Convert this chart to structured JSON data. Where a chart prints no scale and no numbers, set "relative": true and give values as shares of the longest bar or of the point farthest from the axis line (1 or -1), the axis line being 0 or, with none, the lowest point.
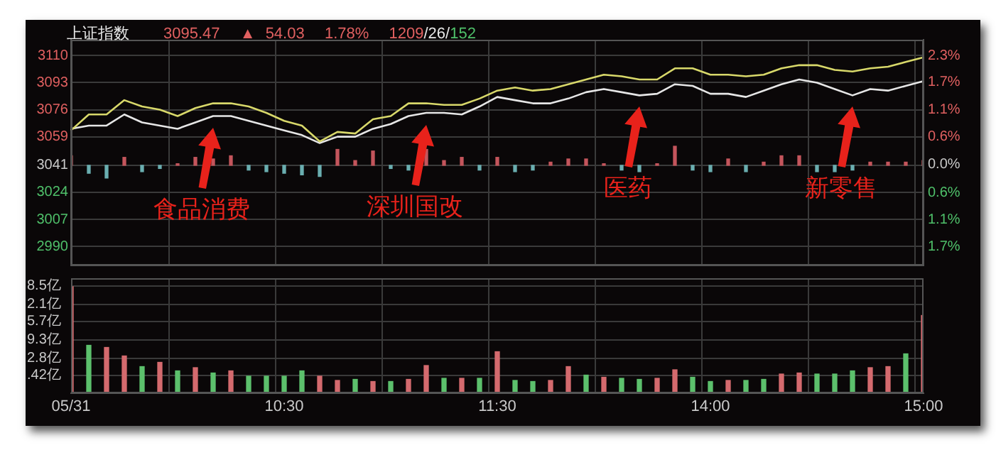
{
  "chart_data": [
    {
      "type": "line",
      "title": "上证指数",
      "subtitle": "3095.47  ▲ 54.03  1.78%  1209/26/152",
      "annotations": [
        "食品消费",
        "深圳国改",
        "医药",
        "新零售"
      ],
      "categories": [
        null,
        null,
        null,
        null,
        null,
        null,
        null,
        null,
        null,
        null,
        null,
        null,
        null,
        null,
        null,
        null,
        null,
        null,
        null,
        null,
        null,
        null,
        null,
        null,
        null,
        null,
        null,
        null,
        null,
        null,
        null,
        null,
        null,
        null,
        null,
        null,
        null,
        null,
        null,
        null,
        null,
        null,
        null,
        null,
        null,
        null,
        null,
        null,
        null
      ],
      "series": [
        {
          "type": "line",
          "color": "#d8d86a",
          "values": [
            3063,
            3073,
            3073,
            3082,
            3078,
            3076,
            3072,
            3077,
            3080,
            3080,
            3078,
            3074,
            3069,
            3066,
            3056,
            3062,
            3061,
            3070,
            3072,
            3080,
            3080,
            3079,
            3079,
            3083,
            3088,
            3090,
            3088,
            3089,
            3092,
            3095,
            3098,
            3097,
            3095,
            3095,
            3102,
            3102,
            3098,
            3098,
            3097,
            3098,
            3102,
            3104,
            3104,
            3101,
            3100,
            3102,
            3103,
            3106,
            3109
          ]
        },
        {
          "type": "line",
          "color": "#e6e6e6",
          "values": [
            3064,
            3066,
            3066,
            3073,
            3068,
            3066,
            3064,
            3068,
            3072,
            3072,
            3069,
            3066,
            3063,
            3060,
            3055,
            3059,
            3059,
            3064,
            3067,
            3072,
            3074,
            3074,
            3073,
            3078,
            3084,
            3082,
            3080,
            3080,
            3083,
            3087,
            3089,
            3087,
            3085,
            3086,
            3092,
            3091,
            3086,
            3086,
            3084,
            3088,
            3092,
            3095,
            3093,
            3089,
            3085,
            3089,
            3088,
            3091,
            3094
          ]
        },
        {
          "type": "bar",
          "values": [
            6,
            -5,
            -8,
            5,
            -4,
            -2,
            1,
            5,
            4,
            6,
            -3,
            -4,
            -5,
            -6,
            -7,
            10,
            3,
            9,
            -2,
            -3,
            10,
            3,
            5,
            -3,
            5,
            -4,
            -3,
            2,
            4,
            4,
            1,
            -3,
            -4,
            1,
            12,
            -3,
            -4,
            4,
            -4,
            2,
            6,
            6,
            -4,
            -4,
            -3,
            2,
            2,
            2,
            3
          ],
          "base": [
            3041,
            3041,
            3041,
            3041,
            3041,
            3041,
            3041,
            3041,
            3041,
            3041,
            3041,
            3041,
            3041,
            3041,
            3041,
            3041,
            3041,
            3041,
            3041,
            3041,
            3041,
            3041,
            3041,
            3041,
            3041,
            3041,
            3041,
            3041,
            3041,
            3041,
            3041,
            3041,
            3041,
            3041,
            3041,
            3041,
            3041,
            3041,
            3041,
            3041,
            3041,
            3041,
            3041,
            3041,
            3041,
            3041,
            3041,
            3041,
            3041
          ],
          "colors": [
            "#c4555c",
            "#6aaeb0",
            "#6aaeb0",
            "#c4555c",
            "#6aaeb0",
            "#6aaeb0",
            "#c4555c",
            "#c4555c",
            "#c4555c",
            "#c4555c",
            "#6aaeb0",
            "#6aaeb0",
            "#6aaeb0",
            "#6aaeb0",
            "#6aaeb0",
            "#c4555c",
            "#c4555c",
            "#c4555c",
            "#6aaeb0",
            "#6aaeb0",
            "#c4555c",
            "#c4555c",
            "#c4555c",
            "#6aaeb0",
            "#c4555c",
            "#6aaeb0",
            "#6aaeb0",
            "#c4555c",
            "#c4555c",
            "#c4555c",
            "#c4555c",
            "#6aaeb0",
            "#6aaeb0",
            "#c4555c",
            "#c4555c",
            "#6aaeb0",
            "#6aaeb0",
            "#c4555c",
            "#6aaeb0",
            "#c4555c",
            "#c4555c",
            "#c4555c",
            "#6aaeb0",
            "#6aaeb0",
            "#6aaeb0",
            "#c4555c",
            "#c4555c",
            "#c4555c",
            "#c4555c"
          ]
        }
      ],
      "ylim": [
        2978,
        3120
      ],
      "yticks": [
        2990,
        3007,
        3024,
        3041,
        3059,
        3076,
        3093,
        3110
      ],
      "y2lim": [
        -2.09,
        2.58
      ],
      "y2ticks": [
        {
          "value": -1.7,
          "label": "1.7%"
        },
        {
          "value": -1.14,
          "label": "1.1%"
        },
        {
          "value": -0.58,
          "label": "0.6%"
        },
        {
          "value": 0,
          "label": "0.0%"
        },
        {
          "value": 0.58,
          "label": "0.6%"
        },
        {
          "value": 1.14,
          "label": "1.1%"
        },
        {
          "value": 1.7,
          "label": "1.7%"
        },
        {
          "value": 2.25,
          "label": "2.3%"
        }
      ],
      "tick_labels": "y",
      "grid": true,
      "legend": false
    },
    {
      "type": "bar",
      "relative": true,
      "annotations": [
        "8.5亿",
        "2.1亿",
        "5.7亿",
        "9.3亿",
        "2.8亿",
        ".42亿"
      ],
      "categories": [
        "05/31",
        null,
        null,
        null,
        null,
        null,
        null,
        null,
        null,
        null,
        null,
        null,
        "10:30",
        null,
        null,
        null,
        null,
        null,
        null,
        null,
        null,
        null,
        null,
        null,
        "11:30",
        null,
        null,
        null,
        null,
        null,
        null,
        null,
        null,
        null,
        null,
        null,
        "14:00",
        null,
        null,
        null,
        null,
        null,
        null,
        null,
        null,
        null,
        null,
        null,
        "15:00"
      ],
      "values": [
        1,
        0.45,
        0.43,
        0.35,
        0.25,
        0.29,
        0.21,
        0.24,
        0.19,
        0.21,
        0.16,
        0.16,
        0.16,
        0.21,
        0.16,
        0.12,
        0.13,
        0.11,
        0.11,
        0.13,
        0.26,
        0.14,
        0.14,
        0.14,
        0.39,
        0.12,
        0.11,
        0.12,
        0.25,
        0.17,
        0.15,
        0.14,
        0.13,
        0.14,
        0.22,
        0.15,
        0.11,
        0.12,
        0.12,
        0.13,
        0.18,
        0.19,
        0.18,
        0.18,
        0.21,
        0.24,
        0.25,
        0.37,
        0.73
      ],
      "colors": [
        "#d46a6e",
        "#5cc06c",
        "#d46a6e",
        "#d46a6e",
        "#5cc06c",
        "#d46a6e",
        "#5cc06c",
        "#d46a6e",
        "#5cc06c",
        "#d46a6e",
        "#5cc06c",
        "#5cc06c",
        "#5cc06c",
        "#5cc06c",
        "#d46a6e",
        "#d46a6e",
        "#5cc06c",
        "#d46a6e",
        "#5cc06c",
        "#d46a6e",
        "#d46a6e",
        "#5cc06c",
        "#d46a6e",
        "#5cc06c",
        "#d46a6e",
        "#5cc06c",
        "#5cc06c",
        "#d46a6e",
        "#d46a6e",
        "#5cc06c",
        "#d46a6e",
        "#5cc06c",
        "#5cc06c",
        "#d46a6e",
        "#d46a6e",
        "#5cc06c",
        "#5cc06c",
        "#d46a6e",
        "#5cc06c",
        "#5cc06c",
        "#d46a6e",
        "#d46a6e",
        "#5cc06c",
        "#5cc06c",
        "#5cc06c",
        "#d46a6e",
        "#d46a6e",
        "#5cc06c",
        "#d46a6e"
      ],
      "grid": true,
      "legend": false
    }
  ]
}
